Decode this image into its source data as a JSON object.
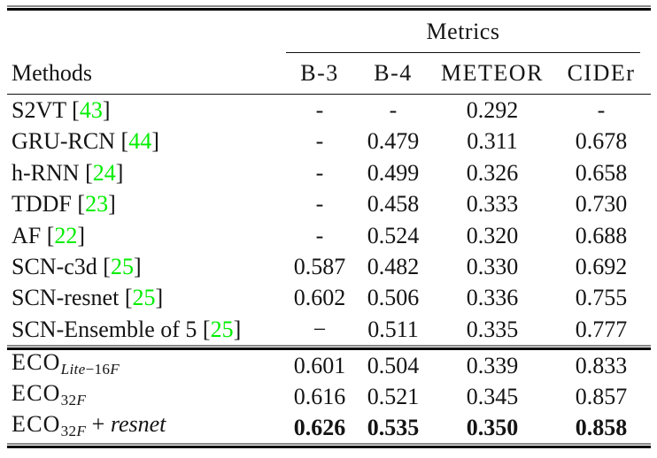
{
  "page": {
    "background": "#ffffff"
  },
  "colors": {
    "citation_green": "#00ee00",
    "rule_color": "#000000"
  },
  "table": {
    "group_header": "Metrics",
    "method_header": "Methods",
    "columns": [
      "B-3",
      "B-4",
      "METEOR",
      "CIDEr"
    ],
    "rows": [
      {
        "section": "baseline",
        "pre": [
          {
            "t": "S2VT ",
            "i": 0
          }
        ],
        "cite": "43",
        "sub": null,
        "post": null,
        "values": [
          "-",
          "-",
          "0.292",
          "-"
        ],
        "bold": false
      },
      {
        "section": "baseline",
        "pre": [
          {
            "t": "GRU-RCN ",
            "i": 0
          }
        ],
        "cite": "44",
        "sub": null,
        "post": null,
        "values": [
          "-",
          "0.479",
          "0.311",
          "0.678"
        ],
        "bold": false
      },
      {
        "section": "baseline",
        "pre": [
          {
            "t": "h-RNN ",
            "i": 0
          }
        ],
        "cite": "24",
        "sub": null,
        "post": null,
        "values": [
          "-",
          "0.499",
          "0.326",
          "0.658"
        ],
        "bold": false
      },
      {
        "section": "baseline",
        "pre": [
          {
            "t": "TDDF ",
            "i": 0
          }
        ],
        "cite": "23",
        "sub": null,
        "post": null,
        "values": [
          "-",
          "0.458",
          "0.333",
          "0.730"
        ],
        "bold": false
      },
      {
        "section": "baseline",
        "pre": [
          {
            "t": "AF ",
            "i": 0
          }
        ],
        "cite": "22",
        "sub": null,
        "post": null,
        "values": [
          "-",
          "0.524",
          "0.320",
          "0.688"
        ],
        "bold": false
      },
      {
        "section": "baseline",
        "pre": [
          {
            "t": "SCN-c3d ",
            "i": 0
          }
        ],
        "cite": "25",
        "sub": null,
        "post": null,
        "values": [
          "0.587",
          "0.482",
          "0.330",
          "0.692"
        ],
        "bold": false
      },
      {
        "section": "baseline",
        "pre": [
          {
            "t": "SCN-resnet ",
            "i": 0
          }
        ],
        "cite": "25",
        "sub": null,
        "post": null,
        "values": [
          "0.602",
          "0.506",
          "0.336",
          "0.755"
        ],
        "bold": false
      },
      {
        "section": "baseline",
        "pre": [
          {
            "t": "SCN-Ensemble of 5 ",
            "i": 0
          }
        ],
        "cite": "25",
        "sub": null,
        "post": null,
        "values": [
          "−",
          "0.511",
          "0.335",
          "0.777"
        ],
        "bold": false
      },
      {
        "section": "ours",
        "pre": [
          {
            "t": "ECO",
            "i": 0,
            "caps": 1
          }
        ],
        "cite": null,
        "sub": [
          {
            "t": "Lite",
            "i": 1
          },
          {
            "t": "−16",
            "i": 0
          },
          {
            "t": "F",
            "i": 1
          }
        ],
        "post": null,
        "values": [
          "0.601",
          "0.504",
          "0.339",
          "0.833"
        ],
        "bold": false
      },
      {
        "section": "ours",
        "pre": [
          {
            "t": "ECO",
            "i": 0,
            "caps": 1
          }
        ],
        "cite": null,
        "sub": [
          {
            "t": "32",
            "i": 0
          },
          {
            "t": "F",
            "i": 1
          }
        ],
        "post": null,
        "values": [
          "0.616",
          "0.521",
          "0.345",
          "0.857"
        ],
        "bold": false
      },
      {
        "section": "ours",
        "pre": [
          {
            "t": "ECO",
            "i": 0,
            "caps": 1
          }
        ],
        "cite": null,
        "sub": [
          {
            "t": "32",
            "i": 0
          },
          {
            "t": "F",
            "i": 1
          }
        ],
        "post": [
          {
            "t": " + ",
            "i": 0
          },
          {
            "t": "resnet",
            "i": 1
          }
        ],
        "values": [
          "0.626",
          "0.535",
          "0.350",
          "0.858"
        ],
        "bold": true
      }
    ]
  }
}
